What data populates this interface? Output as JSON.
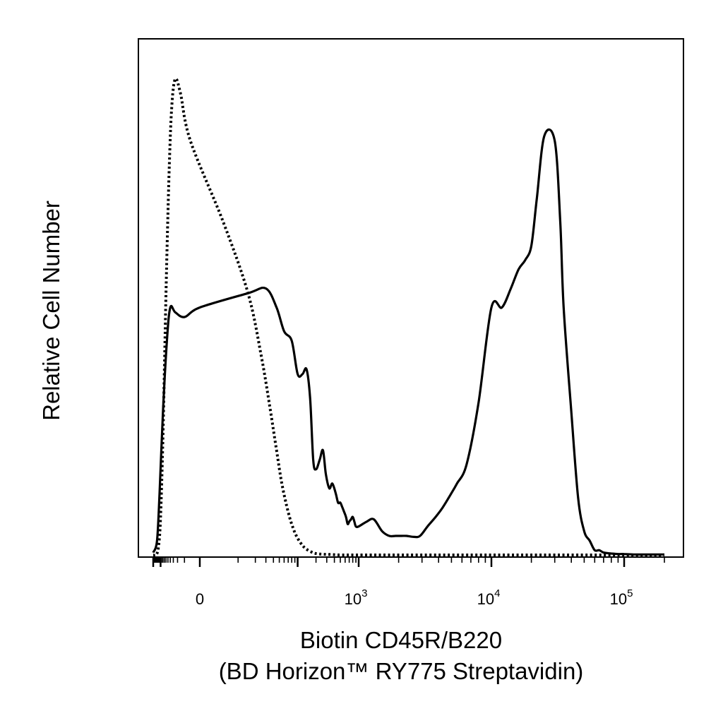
{
  "chart_data": {
    "type": "line",
    "title": "",
    "xlabel": "Biotin CD45R/B220",
    "xlabel_line2": "(BD Horizon™ RY775 Streptavidin)",
    "ylabel": "Relative Cell Number",
    "x_scale": "biexponential",
    "xlim": [
      -200,
      200000
    ],
    "ylim": [
      0,
      1
    ],
    "grid": false,
    "legend": "none",
    "x_ticks": [
      {
        "value": 0,
        "base": "0",
        "exp": ""
      },
      {
        "value": 1000,
        "base": "10",
        "exp": "3"
      },
      {
        "value": 10000,
        "base": "10",
        "exp": "4"
      },
      {
        "value": 100000,
        "base": "10",
        "exp": "5"
      }
    ],
    "series": [
      {
        "style": "solid",
        "color": "#000000",
        "x": [
          -200,
          -140,
          -110,
          -80,
          -55,
          -40,
          -25,
          -10,
          0,
          15,
          30,
          45,
          60,
          80,
          100,
          120,
          140,
          160,
          180,
          200,
          230,
          260,
          290,
          330,
          370,
          420,
          460,
          500,
          540,
          580,
          620,
          660,
          700,
          750,
          800,
          850,
          900,
          1000,
          1150,
          1300,
          1500,
          1700,
          1900,
          2100,
          2300,
          2600,
          2900,
          3300,
          3800,
          4300,
          5000,
          5500,
          6500,
          8000,
          10000,
          12000,
          14000,
          16000,
          18000,
          20000,
          22000,
          25000,
          30000,
          33000,
          35000,
          40000,
          45000,
          50000,
          55000,
          60000,
          65000,
          70000,
          80000,
          90000,
          100000,
          120000,
          150000,
          200000
        ],
        "y": [
          0.005,
          0.03,
          0.13,
          0.3,
          0.45,
          0.52,
          0.51,
          0.5,
          0.52,
          0.55,
          0.56,
          0.52,
          0.47,
          0.45,
          0.38,
          0.38,
          0.39,
          0.33,
          0.2,
          0.18,
          0.2,
          0.22,
          0.17,
          0.14,
          0.15,
          0.13,
          0.11,
          0.11,
          0.1,
          0.09,
          0.08,
          0.065,
          0.07,
          0.075,
          0.08,
          0.07,
          0.06,
          0.06,
          0.07,
          0.075,
          0.05,
          0.04,
          0.04,
          0.04,
          0.04,
          0.038,
          0.04,
          0.06,
          0.08,
          0.1,
          0.13,
          0.15,
          0.19,
          0.32,
          0.52,
          0.52,
          0.56,
          0.6,
          0.62,
          0.65,
          0.75,
          0.88,
          0.87,
          0.7,
          0.52,
          0.3,
          0.12,
          0.05,
          0.03,
          0.01,
          0.01,
          0.005,
          0.003,
          0.002,
          0.002,
          0.001,
          0.001,
          0.001
        ]
      },
      {
        "style": "dotted",
        "color": "#000000",
        "x": [
          -200,
          -150,
          -120,
          -100,
          -80,
          -60,
          -45,
          -35,
          -25,
          -15,
          -5,
          5,
          15,
          25,
          35,
          45,
          55,
          70,
          85,
          100,
          120,
          140,
          170,
          200,
          260,
          350,
          500,
          1000,
          5000,
          20000,
          100000,
          200000
        ],
        "y": [
          0,
          0.0,
          0.02,
          0.08,
          0.25,
          0.55,
          0.8,
          0.94,
          1.0,
          0.97,
          0.87,
          0.7,
          0.55,
          0.42,
          0.31,
          0.22,
          0.15,
          0.09,
          0.055,
          0.035,
          0.02,
          0.012,
          0.006,
          0.003,
          0.0015,
          0.001,
          0.0,
          0.0,
          0.0,
          0.0,
          0.0,
          0.0
        ]
      }
    ]
  }
}
